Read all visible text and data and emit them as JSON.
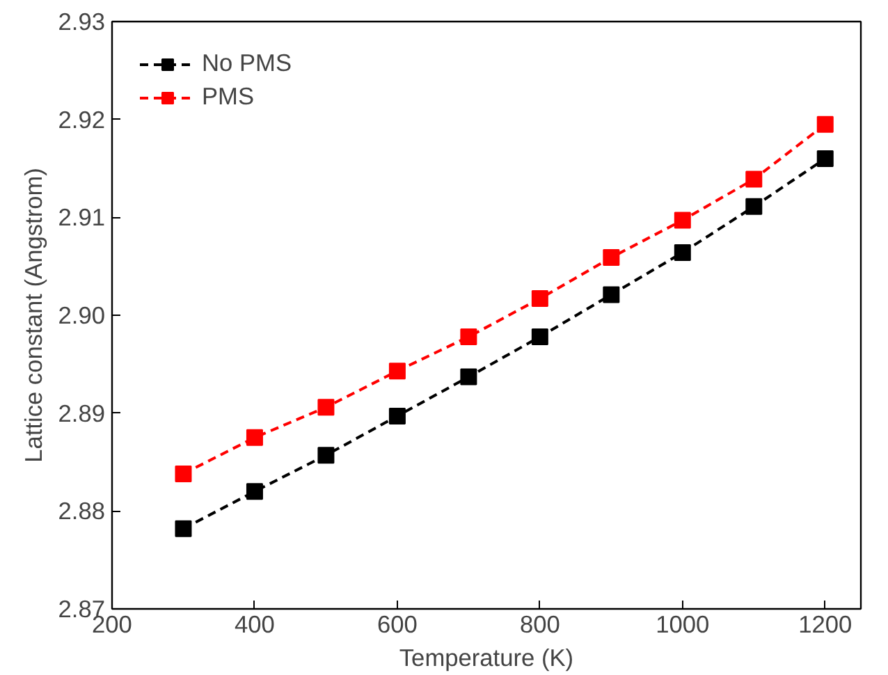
{
  "chart_data": {
    "type": "line",
    "xlabel": "Temperature (K)",
    "ylabel": "Lattice constant (Angstrom)",
    "x": [
      300,
      400,
      500,
      600,
      700,
      800,
      900,
      1000,
      1100,
      1200
    ],
    "series": [
      {
        "name": "No PMS",
        "color": "#000000",
        "values": [
          2.8782,
          2.882,
          2.8857,
          2.8897,
          2.8937,
          2.8978,
          2.9021,
          2.9064,
          2.9111,
          2.916
        ]
      },
      {
        "name": "PMS",
        "color": "#ff0000",
        "values": [
          2.8838,
          2.8875,
          2.8906,
          2.8943,
          2.8978,
          2.9017,
          2.9059,
          2.9097,
          2.9139,
          2.9195
        ]
      }
    ],
    "xlim": [
      200,
      1250
    ],
    "xticks": [
      200,
      400,
      600,
      800,
      1000,
      1200
    ],
    "ylim": [
      2.87,
      2.93
    ],
    "yticks": [
      {
        "value": 2.87,
        "label": "2.87"
      },
      {
        "value": 2.88,
        "label": "2.88"
      },
      {
        "value": 2.89,
        "label": "2.89"
      },
      {
        "value": 2.9,
        "label": "2.90"
      },
      {
        "value": 2.91,
        "label": "2.91"
      },
      {
        "value": 2.92,
        "label": "2.92"
      },
      {
        "value": 2.93,
        "label": "2.93"
      }
    ],
    "marker": "square",
    "line_style": "dashed",
    "legend": "top left",
    "grid": false
  }
}
